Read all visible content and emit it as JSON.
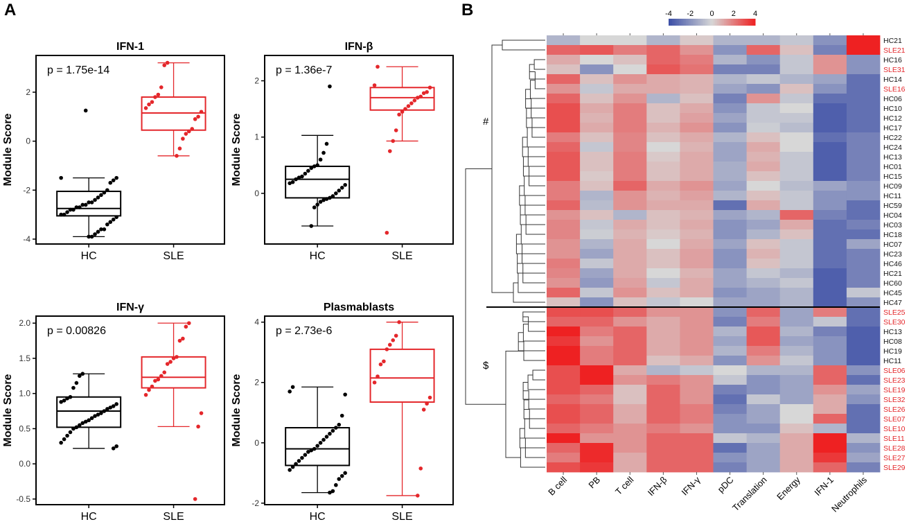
{
  "panel_labels": {
    "a": "A",
    "b": "B"
  },
  "colors": {
    "hc": "#000000",
    "sle": "#e4272b",
    "low": "#3b4ea6",
    "mid": "#d7d7d7",
    "high": "#ee2122"
  },
  "chart_data": [
    {
      "type": "box",
      "title": "IFN-1",
      "ylabel": "Module Score",
      "ylim": [
        -4.2,
        3.5
      ],
      "yticks": [
        -4,
        -2,
        0,
        2
      ],
      "categories": [
        "HC",
        "SLE"
      ],
      "pvalue": "p = 1.75e-14",
      "boxes": [
        {
          "name": "HC",
          "q1": -3.05,
          "median": -2.75,
          "q3": -2.05,
          "whisker_low": -3.9,
          "whisker_high": -1.5,
          "points": [
            -1.5,
            -1.5,
            -1.6,
            -1.7,
            -2.0,
            -2.1,
            -2.2,
            -2.3,
            -2.4,
            -2.5,
            -2.5,
            -2.6,
            -2.6,
            -2.7,
            -2.7,
            -2.8,
            -2.8,
            -2.9,
            -3.0,
            -3.0,
            -3.1,
            -3.2,
            -3.3,
            -3.4,
            -3.6,
            -3.6,
            -3.7,
            -3.8,
            -3.9,
            -3.9,
            1.25
          ]
        },
        {
          "name": "SLE",
          "q1": 0.45,
          "median": 1.15,
          "q3": 1.8,
          "whisker_low": -0.6,
          "whisker_high": 3.2,
          "points": [
            3.2,
            3.1,
            2.2,
            1.9,
            1.8,
            1.6,
            1.5,
            1.35,
            1.2,
            1.0,
            0.9,
            0.5,
            0.4,
            0.3,
            0.1,
            -0.3,
            -0.6
          ]
        }
      ]
    },
    {
      "type": "box",
      "title": "IFN-β",
      "ylabel": "Module Score",
      "ylim": [
        -0.9,
        2.45
      ],
      "yticks": [
        0,
        1,
        2
      ],
      "categories": [
        "HC",
        "SLE"
      ],
      "pvalue": "p = 1.36e-7",
      "boxes": [
        {
          "name": "HC",
          "q1": -0.08,
          "median": 0.25,
          "q3": 0.48,
          "whisker_low": -0.58,
          "whisker_high": 1.03,
          "points": [
            1.9,
            0.88,
            0.72,
            0.6,
            0.5,
            0.48,
            0.45,
            0.4,
            0.35,
            0.3,
            0.28,
            0.25,
            0.2,
            0.18,
            0.15,
            0.1,
            0.05,
            0.0,
            -0.05,
            -0.08,
            -0.1,
            -0.12,
            -0.15,
            -0.2,
            -0.25,
            -0.58
          ]
        },
        {
          "name": "SLE",
          "q1": 1.48,
          "median": 1.7,
          "q3": 1.88,
          "whisker_low": 0.93,
          "whisker_high": 2.25,
          "points": [
            2.25,
            1.92,
            1.88,
            1.8,
            1.78,
            1.72,
            1.7,
            1.65,
            1.6,
            1.55,
            1.5,
            1.45,
            1.4,
            1.12,
            0.93,
            0.75,
            -0.7
          ]
        }
      ]
    },
    {
      "type": "box",
      "title": "IFN-γ",
      "ylabel": "Module Score",
      "ylim": [
        -0.58,
        2.1
      ],
      "yticks": [
        -0.5,
        0.0,
        0.5,
        1.0,
        1.5,
        2.0
      ],
      "categories": [
        "HC",
        "SLE"
      ],
      "pvalue": "p = 0.00826",
      "boxes": [
        {
          "name": "HC",
          "q1": 0.52,
          "median": 0.75,
          "q3": 0.95,
          "whisker_low": 0.22,
          "whisker_high": 1.28,
          "points": [
            1.28,
            1.25,
            1.15,
            1.08,
            0.95,
            0.93,
            0.9,
            0.88,
            0.85,
            0.82,
            0.8,
            0.78,
            0.75,
            0.72,
            0.7,
            0.68,
            0.65,
            0.62,
            0.6,
            0.58,
            0.55,
            0.52,
            0.5,
            0.45,
            0.4,
            0.35,
            0.3,
            0.25,
            0.22
          ]
        },
        {
          "name": "SLE",
          "q1": 1.08,
          "median": 1.23,
          "q3": 1.52,
          "whisker_low": 0.53,
          "whisker_high": 2.0,
          "points": [
            2.0,
            1.95,
            1.78,
            1.75,
            1.52,
            1.5,
            1.45,
            1.42,
            1.3,
            1.25,
            1.2,
            1.18,
            1.1,
            1.05,
            0.98,
            0.72,
            0.53,
            -0.5
          ]
        }
      ]
    },
    {
      "type": "box",
      "title": "Plasmablasts",
      "ylabel": "Module Score",
      "ylim": [
        -2.05,
        4.2
      ],
      "yticks": [
        -2,
        0,
        2,
        4
      ],
      "categories": [
        "HC",
        "SLE"
      ],
      "pvalue": "p = 2.73e-6",
      "boxes": [
        {
          "name": "HC",
          "q1": -0.75,
          "median": -0.2,
          "q3": 0.5,
          "whisker_low": -1.65,
          "whisker_high": 1.85,
          "points": [
            1.85,
            1.7,
            1.6,
            0.9,
            0.6,
            0.5,
            0.4,
            0.3,
            0.2,
            0.1,
            0.0,
            -0.1,
            -0.2,
            -0.25,
            -0.3,
            -0.4,
            -0.5,
            -0.6,
            -0.7,
            -0.8,
            -0.9,
            -1.0,
            -1.1,
            -1.2,
            -1.4,
            -1.6,
            -1.65
          ]
        },
        {
          "name": "SLE",
          "q1": 1.35,
          "median": 2.15,
          "q3": 3.1,
          "whisker_low": -1.75,
          "whisker_high": 4.0,
          "points": [
            4.0,
            3.55,
            3.4,
            3.25,
            3.1,
            2.7,
            2.6,
            2.2,
            2.0,
            1.5,
            1.3,
            1.1,
            -0.85,
            -1.75
          ]
        }
      ]
    },
    {
      "type": "heatmap",
      "colorbar": {
        "min": -4,
        "max": 4,
        "ticks": [
          "-4",
          "-2",
          "0",
          "2",
          "4"
        ]
      },
      "columns": [
        "B cell",
        "PB",
        "T cell",
        "IFN-β",
        "IFN-γ",
        "pDC",
        "Translation",
        "Energy",
        "IFN-1",
        "Neutrophils"
      ],
      "cluster_marks": [
        "#",
        "$"
      ],
      "rows": [
        "HC21",
        "SLE21",
        "HC16",
        "SLE31",
        "HC14",
        "SLE16",
        "HC06",
        "HC10",
        "HC12",
        "HC17",
        "HC22",
        "HC24",
        "HC13",
        "HC01",
        "HC15",
        "HC09",
        "HC11",
        "HC59",
        "HC04",
        "HC03",
        "HC18",
        "HC07",
        "HC23",
        "HC46",
        "HC21",
        "HC60",
        "HC45",
        "HC47",
        "SLE25",
        "SLE30",
        "HC13",
        "HC08",
        "HC19",
        "HC11",
        "SLE06",
        "SLE23",
        "SLE19",
        "SLE32",
        "SLE26",
        "SLE07",
        "SLE10",
        "SLE11",
        "SLE28",
        "SLE27",
        "SLE29"
      ],
      "values": [
        [
          -1.0,
          0.0,
          0.0,
          -1.0,
          0.3,
          -1.0,
          -1.0,
          -0.5,
          -2.0,
          4.0
        ],
        [
          2.5,
          2.8,
          2.0,
          2.5,
          1.5,
          -2.0,
          2.5,
          0.5,
          -2.5,
          4.0
        ],
        [
          1.0,
          0.0,
          0.5,
          2.5,
          2.0,
          -1.0,
          -2.0,
          -0.5,
          1.5,
          -2.0
        ],
        [
          0.5,
          -2.0,
          0.0,
          2.8,
          2.2,
          -2.5,
          -2.5,
          -0.5,
          1.5,
          -2.0
        ],
        [
          2.5,
          0.5,
          1.5,
          1.0,
          0.8,
          -1.0,
          -0.5,
          -1.0,
          -1.5,
          -3.0
        ],
        [
          1.5,
          -0.5,
          1.0,
          1.0,
          0.8,
          -1.5,
          -2.0,
          0.5,
          -2.0,
          -3.0
        ],
        [
          2.5,
          0.5,
          1.5,
          -1.0,
          0.5,
          -2.5,
          1.5,
          -0.5,
          -3.0,
          -3.0
        ],
        [
          3.0,
          1.0,
          2.0,
          0.5,
          1.0,
          -2.0,
          -0.5,
          0.0,
          -3.5,
          -3.0
        ],
        [
          3.0,
          0.8,
          2.0,
          0.5,
          1.2,
          -1.5,
          -0.5,
          -0.5,
          -3.5,
          -3.0
        ],
        [
          3.0,
          1.0,
          2.0,
          0.8,
          1.5,
          -2.0,
          -0.3,
          -0.8,
          -3.5,
          -3.0
        ],
        [
          2.0,
          0.5,
          1.8,
          0.5,
          1.0,
          -1.0,
          0.5,
          0.0,
          -3.0,
          -2.5
        ],
        [
          2.5,
          -0.5,
          1.8,
          0.0,
          0.8,
          -1.5,
          1.0,
          0.0,
          -3.5,
          -2.5
        ],
        [
          2.8,
          0.5,
          2.0,
          0.3,
          1.0,
          -1.5,
          0.8,
          -0.5,
          -3.5,
          -2.5
        ],
        [
          2.8,
          0.5,
          2.0,
          0.5,
          1.0,
          -1.2,
          1.0,
          -0.5,
          -3.5,
          -2.5
        ],
        [
          2.8,
          0.3,
          2.0,
          0.5,
          1.0,
          -1.2,
          0.5,
          -0.5,
          -3.5,
          -2.5
        ],
        [
          2.0,
          0.5,
          2.5,
          1.0,
          1.5,
          -1.5,
          0.0,
          -0.8,
          -1.5,
          -2.0
        ],
        [
          2.0,
          -1.0,
          1.5,
          0.8,
          1.2,
          -1.0,
          0.5,
          -0.5,
          -2.0,
          -2.0
        ],
        [
          2.5,
          -0.8,
          1.5,
          1.0,
          1.0,
          -3.0,
          1.0,
          -0.5,
          -2.0,
          -3.0
        ],
        [
          1.5,
          0.5,
          -1.0,
          0.5,
          0.8,
          -1.5,
          -1.0,
          2.5,
          -2.5,
          -3.0
        ],
        [
          1.8,
          -0.5,
          1.0,
          0.5,
          1.0,
          -2.0,
          -1.5,
          1.0,
          -3.0,
          -2.5
        ],
        [
          1.8,
          -0.3,
          0.8,
          0.3,
          0.8,
          -2.0,
          -1.0,
          0.5,
          -3.0,
          -3.0
        ],
        [
          1.5,
          -1.0,
          1.0,
          0.0,
          1.0,
          -1.5,
          0.5,
          -0.5,
          -3.0,
          -1.5
        ],
        [
          1.5,
          -1.5,
          1.0,
          0.5,
          1.2,
          -2.0,
          0.8,
          -0.5,
          -3.0,
          -2.5
        ],
        [
          2.0,
          -0.5,
          1.0,
          0.5,
          1.2,
          -2.0,
          0.5,
          -0.5,
          -3.0,
          -2.5
        ],
        [
          1.8,
          -1.5,
          1.0,
          0.0,
          0.8,
          -1.5,
          -0.5,
          -1.0,
          -3.5,
          -2.5
        ],
        [
          1.5,
          -1.8,
          1.2,
          -0.5,
          1.0,
          -1.5,
          -1.0,
          -0.5,
          -3.5,
          -2.5
        ],
        [
          2.5,
          -0.5,
          1.5,
          0.5,
          1.0,
          -2.0,
          -1.5,
          -1.0,
          -3.5,
          -0.5
        ],
        [
          0.5,
          -2.0,
          0.5,
          -0.5,
          0.0,
          -1.5,
          -1.5,
          -1.0,
          -3.5,
          -2.0
        ],
        [
          3.0,
          3.0,
          2.5,
          1.5,
          1.5,
          -2.0,
          2.5,
          -1.5,
          2.0,
          -3.0
        ],
        [
          2.5,
          2.5,
          1.5,
          1.0,
          1.5,
          -2.5,
          2.0,
          -1.5,
          -0.5,
          -3.0
        ],
        [
          4.0,
          2.0,
          2.5,
          1.0,
          1.5,
          -1.0,
          2.8,
          -1.0,
          -2.5,
          -3.5
        ],
        [
          3.5,
          1.5,
          2.5,
          1.0,
          1.5,
          -1.5,
          2.8,
          -1.5,
          -2.0,
          -3.5
        ],
        [
          4.0,
          2.0,
          2.5,
          1.0,
          1.5,
          -1.0,
          2.0,
          -1.0,
          -2.0,
          -3.5
        ],
        [
          4.0,
          2.0,
          2.5,
          0.5,
          1.0,
          -2.0,
          1.5,
          -0.5,
          -2.0,
          -3.5
        ],
        [
          3.0,
          4.0,
          1.0,
          -1.0,
          -0.5,
          0.0,
          -1.0,
          -1.0,
          2.5,
          -2.0
        ],
        [
          3.0,
          4.0,
          1.5,
          2.0,
          1.5,
          -0.5,
          -2.0,
          -1.5,
          2.5,
          -3.0
        ],
        [
          3.0,
          2.5,
          0.5,
          2.5,
          1.5,
          -2.5,
          -2.0,
          -1.5,
          1.5,
          -1.5
        ],
        [
          2.5,
          2.0,
          0.5,
          2.5,
          1.5,
          -3.0,
          -0.5,
          -1.5,
          1.0,
          -2.0
        ],
        [
          3.0,
          2.5,
          1.0,
          2.5,
          2.0,
          -2.5,
          -1.5,
          0.0,
          1.0,
          -3.0
        ],
        [
          3.0,
          2.5,
          1.0,
          2.5,
          2.0,
          -2.0,
          -1.5,
          0.0,
          2.5,
          -3.0
        ],
        [
          2.5,
          2.0,
          1.5,
          2.0,
          1.5,
          -2.0,
          -2.0,
          0.5,
          -1.0,
          -3.0
        ],
        [
          4.0,
          1.5,
          1.5,
          2.5,
          2.5,
          -0.5,
          -1.0,
          1.0,
          4.0,
          -1.0
        ],
        [
          2.5,
          3.8,
          1.5,
          2.5,
          2.5,
          -3.0,
          -1.5,
          1.0,
          4.0,
          -2.0
        ],
        [
          2.0,
          3.8,
          1.0,
          2.5,
          2.5,
          -2.0,
          -1.5,
          1.0,
          3.5,
          -1.5
        ],
        [
          3.0,
          3.5,
          1.0,
          2.5,
          2.5,
          -2.5,
          -1.5,
          1.0,
          2.5,
          -2.5
        ]
      ]
    }
  ]
}
